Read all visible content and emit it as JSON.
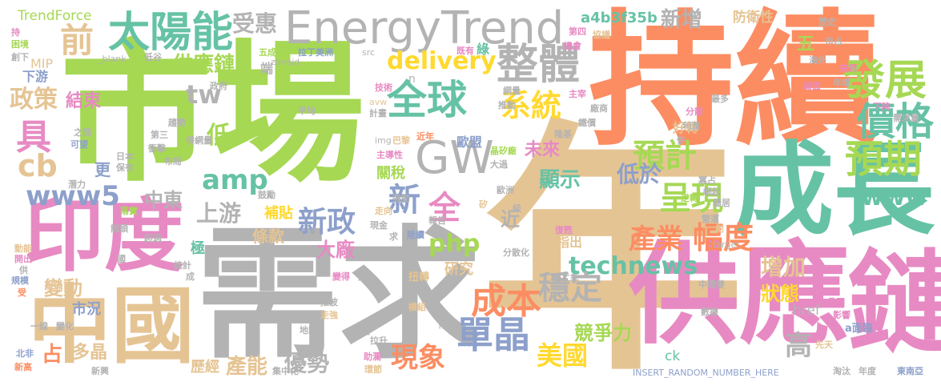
{
  "palette": [
    "#a6d854",
    "#fc8d62",
    "#e5c494",
    "#66c2a5",
    "#e78ac3",
    "#b3b3b3",
    "#ffd92f",
    "#8da0cb"
  ],
  "words": [
    {
      "text": "年",
      "color": "#e5c494"
    },
    {
      "text": "市場",
      "color": "#a6d854"
    },
    {
      "text": "持續",
      "color": "#fc8d62"
    },
    {
      "text": "需求",
      "color": "#b3b3b3"
    },
    {
      "text": "供應",
      "color": "#e78ac3"
    },
    {
      "text": "鏈",
      "color": "#e78ac3"
    },
    {
      "text": "成長",
      "color": "#66c2a5"
    },
    {
      "text": "中國",
      "color": "#e5c494"
    },
    {
      "text": "印度",
      "color": "#e78ac3"
    },
    {
      "text": "EnergyTrend",
      "color": "#b3b3b3"
    },
    {
      "text": "太陽能",
      "color": "#66c2a5"
    },
    {
      "text": "發展",
      "color": "#a6d854"
    },
    {
      "text": "整體",
      "color": "#b3b3b3"
    },
    {
      "text": "全球",
      "color": "#66c2a5"
    },
    {
      "text": "GW",
      "color": "#b3b3b3"
    },
    {
      "text": "價格",
      "color": "#66c2a5"
    },
    {
      "text": "預期",
      "color": "#a6d854"
    },
    {
      "text": "www",
      "color": "#66c2a5"
    },
    {
      "text": "delivery",
      "color": "#ffd92f"
    },
    {
      "text": "系統",
      "color": "#ffd92f"
    },
    {
      "text": "預計",
      "color": "#a6d854"
    },
    {
      "text": "呈現",
      "color": "#a6d854"
    },
    {
      "text": "產業",
      "color": "#fc8d62"
    },
    {
      "text": "幅度",
      "color": "#fc8d62"
    },
    {
      "text": "technews",
      "color": "#66c2a5"
    },
    {
      "text": "成本",
      "color": "#fc8d62"
    },
    {
      "text": "穩定",
      "color": "#b3b3b3"
    },
    {
      "text": "單晶",
      "color": "#8da0cb"
    },
    {
      "text": "美國",
      "color": "#ffd92f"
    },
    {
      "text": "現象",
      "color": "#fc8d62"
    },
    {
      "text": "優勢",
      "color": "#b3b3b3"
    },
    {
      "text": "產能",
      "color": "#e5c494"
    },
    {
      "text": "競爭力",
      "color": "#a6d854"
    },
    {
      "text": "增加",
      "color": "#e5c494"
    },
    {
      "text": "高",
      "color": "#b3b3b3"
    },
    {
      "text": "狀態",
      "color": "#ffd92f"
    },
    {
      "text": "www5",
      "color": "#8da0cb"
    },
    {
      "text": "cb",
      "color": "#e5c494"
    },
    {
      "text": "具",
      "color": "#e78ac3"
    },
    {
      "text": "前",
      "color": "#e5c494"
    },
    {
      "text": "政策",
      "color": "#e5c494"
    },
    {
      "text": "結束",
      "color": "#e78ac3"
    },
    {
      "text": "tw",
      "color": "#b3b3b3"
    },
    {
      "text": "amp",
      "color": "#66c2a5"
    },
    {
      "text": "低",
      "color": "#a6d854"
    },
    {
      "text": "中東",
      "color": "#b3b3b3"
    },
    {
      "text": "上游",
      "color": "#b3b3b3"
    },
    {
      "text": "新政",
      "color": "#8da0cb"
    },
    {
      "text": "新",
      "color": "#8da0cb"
    },
    {
      "text": "全",
      "color": "#e78ac3"
    },
    {
      "text": "php",
      "color": "#a6d854"
    },
    {
      "text": "顯示",
      "color": "#66c2a5"
    },
    {
      "text": "未來",
      "color": "#e78ac3"
    },
    {
      "text": "低於",
      "color": "#8da0cb"
    },
    {
      "text": "新增",
      "color": "#b3b3b3"
    },
    {
      "text": "受惠",
      "color": "#b3b3b3"
    },
    {
      "text": "供應鏈",
      "color": "#a6d854"
    },
    {
      "text": "a4b3f35b",
      "color": "#66c2a5"
    },
    {
      "text": "防衛性",
      "color": "#e5c494"
    },
    {
      "text": "五",
      "color": "#a6d854"
    },
    {
      "text": "TrendForce",
      "color": "#a6d854"
    },
    {
      "text": "MIP",
      "color": "#e5c494"
    },
    {
      "text": "下游",
      "color": "#8da0cb"
    },
    {
      "text": "大廠",
      "color": "#e78ac3"
    },
    {
      "text": "條款",
      "color": "#e5c494"
    },
    {
      "text": "補貼",
      "color": "#ffd92f"
    },
    {
      "text": "近",
      "color": "#b3b3b3"
    },
    {
      "text": "研究",
      "color": "#e5c494"
    },
    {
      "text": "指出",
      "color": "#e5c494"
    },
    {
      "text": "好轉",
      "color": "#e5c494"
    },
    {
      "text": "關稅",
      "color": "#a6d854"
    },
    {
      "text": "歐盟",
      "color": "#8da0cb"
    },
    {
      "text": "更",
      "color": "#8da0cb"
    },
    {
      "text": "變動",
      "color": "#e5c494"
    },
    {
      "text": "市況",
      "color": "#8da0cb"
    },
    {
      "text": "占",
      "color": "#fc8d62"
    },
    {
      "text": "多晶",
      "color": "#e5c494"
    },
    {
      "text": "歷經",
      "color": "#e5c494"
    },
    {
      "text": "極",
      "color": "#66c2a5"
    },
    {
      "text": "href",
      "color": "#b3b3b3"
    },
    {
      "text": "ck",
      "color": "#66c2a5"
    },
    {
      "text": "a面臨",
      "color": "#8da0cb"
    },
    {
      "text": "INSERT_RANDOM_NUMBER_HERE",
      "color": "#8da0cb"
    },
    {
      "text": "東南亞",
      "color": "#8da0cb"
    },
    {
      "text": "淘汰",
      "color": "#b3b3b3"
    },
    {
      "text": "年度",
      "color": "#b3b3b3"
    },
    {
      "text": "zoneid",
      "color": "#b3b3b3"
    },
    {
      "text": "_blank",
      "color": "#b3b3b3"
    },
    {
      "text": "拉丁美洲",
      "color": "#8da0cb"
    },
    {
      "text": "src",
      "color": "#b3b3b3"
    },
    {
      "text": "綠",
      "color": "#66c2a5"
    },
    {
      "text": "既有",
      "color": "#e78ac3"
    },
    {
      "text": "n",
      "color": "#b3b3b3"
    },
    {
      "text": "技術",
      "color": "#e78ac3"
    },
    {
      "text": "img",
      "color": "#b3b3b3"
    },
    {
      "text": "巴黎",
      "color": "#e5c494"
    },
    {
      "text": "晶矽廠",
      "color": "#a6d854"
    },
    {
      "text": "大過",
      "color": "#b3b3b3"
    },
    {
      "text": "主導性",
      "color": "#e78ac3"
    },
    {
      "text": "矽",
      "color": "#e5c494"
    },
    {
      "text": "強勁",
      "color": "#b3b3b3"
    },
    {
      "text": "走向",
      "color": "#e5c494"
    },
    {
      "text": "報告",
      "color": "#b3b3b3"
    },
    {
      "text": "陸續",
      "color": "#8da0cb"
    },
    {
      "text": "現金",
      "color": "#b3b3b3"
    },
    {
      "text": "扭轉",
      "color": "#e5c494"
    },
    {
      "text": "變得",
      "color": "#e78ac3"
    },
    {
      "text": "強",
      "color": "#b3b3b3"
    },
    {
      "text": "第二季",
      "color": "#b3b3b3"
    },
    {
      "text": "分散化",
      "color": "#b3b3b3"
    },
    {
      "text": "復甦",
      "color": "#e78ac3"
    },
    {
      "text": "推波",
      "color": "#b3b3b3"
    },
    {
      "text": "走強",
      "color": "#e5c494"
    },
    {
      "text": "模組",
      "color": "#e5c494"
    },
    {
      "text": "陷入",
      "color": "#b3b3b3"
    },
    {
      "text": "擴產",
      "color": "#b3b3b3"
    },
    {
      "text": "地區",
      "color": "#b3b3b3"
    },
    {
      "text": "拉升",
      "color": "#b3b3b3"
    },
    {
      "text": "助瀾",
      "color": "#e78ac3"
    },
    {
      "text": "環節",
      "color": "#e5c494"
    },
    {
      "text": "集中化",
      "color": "#b3b3b3"
    },
    {
      "text": "先天",
      "color": "#e5c494"
    },
    {
      "text": "影響",
      "color": "#e78ac3"
    },
    {
      "text": "晶圓",
      "color": "#e78ac3"
    },
    {
      "text": "中環雙",
      "color": "#b3b3b3"
    },
    {
      "text": "數據",
      "color": "#b3b3b3"
    },
    {
      "text": "target",
      "color": "#b3b3b3"
    },
    {
      "text": "歷史",
      "color": "#b3b3b3"
    },
    {
      "text": "市占",
      "color": "#b3b3b3"
    },
    {
      "text": "來到",
      "color": "#e78ac3"
    },
    {
      "text": "年增",
      "color": "#b3b3b3"
    },
    {
      "text": "海外",
      "color": "#b3b3b3"
    },
    {
      "text": "局面",
      "color": "#e78ac3"
    },
    {
      "text": "最多",
      "color": "#b3b3b3"
    },
    {
      "text": "下降",
      "color": "#e78ac3"
    },
    {
      "text": "需求量",
      "color": "#b3b3b3"
    },
    {
      "text": "分散",
      "color": "#e78ac3"
    },
    {
      "text": "利潤",
      "color": "#b3b3b3"
    },
    {
      "text": "協議",
      "color": "#e5c494"
    },
    {
      "text": "第四",
      "color": "#e78ac3"
    },
    {
      "text": "機會",
      "color": "#e78ac3"
    },
    {
      "text": "網量",
      "color": "#b3b3b3"
    },
    {
      "text": "推動",
      "color": "#b3b3b3"
    },
    {
      "text": "主宰",
      "color": "#e78ac3"
    },
    {
      "text": "鐵價",
      "color": "#b3b3b3"
    },
    {
      "text": "隆基",
      "color": "#b3b3b3"
    },
    {
      "text": "廠商",
      "color": "#b3b3b3"
    },
    {
      "text": "逆轉",
      "color": "#a6d854"
    },
    {
      "text": "崛起",
      "color": "#b3b3b3"
    },
    {
      "text": "寡占",
      "color": "#b3b3b3"
    },
    {
      "text": "穩居",
      "color": "#b3b3b3"
    },
    {
      "text": "營運",
      "color": "#b3b3b3"
    },
    {
      "text": "創",
      "color": "#e5c494"
    },
    {
      "text": "級",
      "color": "#b3b3b3"
    },
    {
      "text": "歐洲",
      "color": "#b3b3b3"
    },
    {
      "text": "鼓勵",
      "color": "#b3b3b3"
    },
    {
      "text": "求",
      "color": "#b3b3b3"
    },
    {
      "text": "市",
      "color": "#b3b3b3"
    },
    {
      "text": "持",
      "color": "#e78ac3"
    },
    {
      "text": "困境",
      "color": "#a6d854"
    },
    {
      "text": "低谷",
      "color": "#b3b3b3"
    },
    {
      "text": "創下",
      "color": "#b3b3b3"
    },
    {
      "text": "政府",
      "color": "#b3b3b3"
    },
    {
      "text": "五成",
      "color": "#a6d854"
    },
    {
      "text": "端",
      "color": "#b3b3b3"
    },
    {
      "text": "平均",
      "color": "#b3b3b3"
    },
    {
      "text": "avw",
      "color": "#e5c494"
    },
    {
      "text": "計畫",
      "color": "#b3b3b3"
    },
    {
      "text": "近年",
      "color": "#fc8d62"
    },
    {
      "text": "趨勢",
      "color": "#b3b3b3"
    },
    {
      "text": "併網量",
      "color": "#b3b3b3"
    },
    {
      "text": "之間",
      "color": "#b3b3b3"
    },
    {
      "text": "可望",
      "color": "#8da0cb"
    },
    {
      "text": "第三",
      "color": "#b3b3b3"
    },
    {
      "text": "衝擊",
      "color": "#b3b3b3"
    },
    {
      "text": "日本",
      "color": "#b3b3b3"
    },
    {
      "text": "保有",
      "color": "#b3b3b3"
    },
    {
      "text": "布局",
      "color": "#b3b3b3"
    },
    {
      "text": "潛力",
      "color": "#b3b3b3"
    },
    {
      "text": "落實",
      "color": "#a6d854"
    },
    {
      "text": "龍頭",
      "color": "#b3b3b3"
    },
    {
      "text": "動能",
      "color": "#e5c494"
    },
    {
      "text": "開出",
      "color": "#e78ac3"
    },
    {
      "text": "供",
      "color": "#b3b3b3"
    },
    {
      "text": "規模",
      "color": "#8da0cb"
    },
    {
      "text": "受",
      "color": "#fc8d62"
    },
    {
      "text": "超過",
      "color": "#b3b3b3"
    },
    {
      "text": "統計",
      "color": "#b3b3b3"
    },
    {
      "text": "成",
      "color": "#b3b3b3"
    },
    {
      "text": "國",
      "color": "#b3b3b3"
    },
    {
      "text": "一線",
      "color": "#b3b3b3"
    },
    {
      "text": "變化",
      "color": "#b3b3b3"
    },
    {
      "text": "北非",
      "color": "#8da0cb"
    },
    {
      "text": "新高",
      "color": "#fc8d62"
    },
    {
      "text": "新興",
      "color": "#b3b3b3"
    },
    {
      "text": "穩",
      "color": "#b3b3b3"
    },
    {
      "text": "併",
      "color": "#b3b3b3"
    }
  ]
}
